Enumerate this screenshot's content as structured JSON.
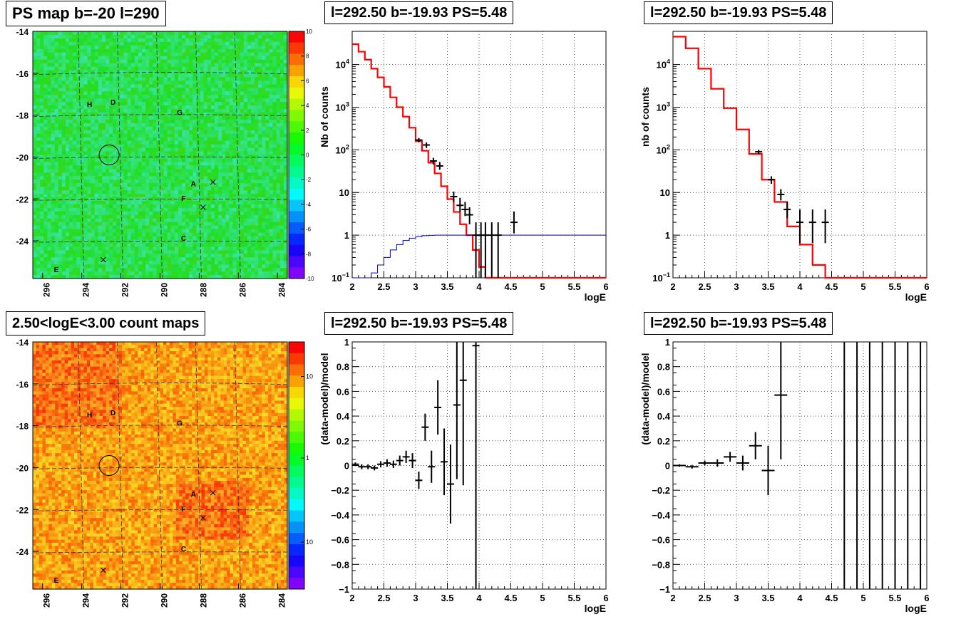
{
  "panels": {
    "ps_map": {
      "title": "PS map b=-20 l=290",
      "colorbar_ticks": [
        "10",
        "8",
        "6",
        "4",
        "2",
        "0",
        "-2",
        "-4",
        "-6",
        "-8",
        "-10"
      ],
      "y_ticks": [
        "-14",
        "-16",
        "-18",
        "-20",
        "-22",
        "-24"
      ],
      "x_ticks": [
        "296",
        "294",
        "292",
        "290",
        "288",
        "286",
        "284"
      ],
      "sources": [
        "H",
        "D",
        "G",
        "A",
        "F",
        "C",
        "E"
      ]
    },
    "count_map": {
      "title": "2.50<logE<3.00 count maps",
      "colorbar_ticks": [
        "10",
        "1",
        "10^-1"
      ],
      "y_ticks": [
        "-14",
        "-16",
        "-18",
        "-20",
        "-22",
        "-24"
      ],
      "x_ticks": [
        "296",
        "294",
        "292",
        "290",
        "288",
        "286",
        "284"
      ],
      "sources": [
        "H",
        "D",
        "G",
        "A",
        "F",
        "C",
        "E"
      ]
    },
    "spectrum_left": {
      "title": "l=292.50 b=-19.93 PS=5.48"
    },
    "spectrum_right": {
      "title": "l=292.50 b=-19.93 PS=5.48"
    },
    "residual_left": {
      "title": "l=292.50 b=-19.93 PS=5.48"
    },
    "residual_right": {
      "title": "l=292.50 b=-19.93 PS=5.48"
    }
  },
  "colors": {
    "model": "#ff0000",
    "blue_model": "#0000cc",
    "data": "#000000"
  },
  "chart_data": [
    {
      "type": "heatmap",
      "title": "PS map b=-20 l=290",
      "xlabel": "",
      "ylabel": "",
      "xlim": [
        296.5,
        283.5
      ],
      "ylim": [
        -25.8,
        -14
      ],
      "zlim": [
        -10,
        10
      ],
      "circle": {
        "x": 292.6,
        "y": -19.9
      },
      "markers": [
        {
          "x": 287.3,
          "y": -21.2
        },
        {
          "x": 287.8,
          "y": -22.4
        },
        {
          "x": 292.9,
          "y": -24.9
        }
      ],
      "labels": [
        {
          "text": "H",
          "x": 293.6,
          "y": -17.6
        },
        {
          "text": "D",
          "x": 292.4,
          "y": -17.5
        },
        {
          "text": "G",
          "x": 289.0,
          "y": -18.0
        },
        {
          "text": "A",
          "x": 288.3,
          "y": -21.4
        },
        {
          "text": "F",
          "x": 288.8,
          "y": -22.1
        },
        {
          "text": "C",
          "x": 288.8,
          "y": -24.0
        },
        {
          "text": "E",
          "x": 295.3,
          "y": -25.5
        }
      ]
    },
    {
      "type": "line",
      "title": "l=292.50 b=-19.93 PS=5.48",
      "xlabel": "logE",
      "ylabel": "Nb of counts",
      "xlim": [
        2,
        6
      ],
      "ylim": [
        0.1,
        60000
      ],
      "log_y": true,
      "grid": true,
      "series": [
        {
          "style": "step",
          "edges": [
            2.0,
            2.1,
            2.2,
            2.3,
            2.4,
            2.5,
            2.6,
            2.7,
            2.8,
            2.9,
            3.0,
            3.1,
            3.2,
            3.3,
            3.4,
            3.5,
            3.6,
            3.7,
            3.8,
            3.9,
            4.0,
            4.1,
            4.2,
            6.0
          ],
          "values": [
            30000,
            20000,
            13000,
            8000,
            5000,
            3000,
            1700,
            1000,
            600,
            330,
            160,
            95,
            50,
            28,
            14,
            7,
            3.5,
            1.8,
            1.0,
            0.45,
            0.18,
            0.1,
            0.1
          ]
        },
        {
          "style": "step",
          "edges": [
            2.0,
            2.3,
            2.4,
            2.5,
            2.6,
            2.7,
            2.8,
            2.9,
            3.0,
            3.1,
            3.2,
            3.3,
            3.4,
            3.5,
            6.0
          ],
          "values": [
            0.1,
            0.13,
            0.2,
            0.3,
            0.45,
            0.6,
            0.75,
            0.85,
            0.92,
            0.97,
            0.99,
            1.0,
            1.0,
            1.0
          ]
        },
        {
          "style": "points",
          "x": [
            3.05,
            3.17,
            3.28,
            3.38,
            3.6,
            3.7,
            3.78,
            3.85,
            3.95,
            4.03,
            4.1,
            4.2,
            4.3,
            4.55
          ],
          "y": [
            170,
            130,
            55,
            42,
            8,
            5,
            4,
            3,
            1,
            1,
            1,
            1,
            1,
            2
          ],
          "ylo": [
            150,
            110,
            45,
            34,
            6,
            3.5,
            2.8,
            1.8,
            0.1,
            0.1,
            0.1,
            0.1,
            0.1,
            1.1
          ],
          "yhi": [
            190,
            150,
            65,
            52,
            10.5,
            7.5,
            6,
            4.5,
            2,
            2,
            2,
            2,
            2,
            3.6
          ]
        }
      ]
    },
    {
      "type": "line",
      "title": "l=292.50 b=-19.93 PS=5.48",
      "xlabel": "logE",
      "ylabel": "nb of counts",
      "xlim": [
        2,
        6
      ],
      "ylim": [
        0.1,
        60000
      ],
      "log_y": true,
      "grid": true,
      "series": [
        {
          "style": "step",
          "edges": [
            2.0,
            2.2,
            2.4,
            2.6,
            2.8,
            3.0,
            3.2,
            3.4,
            3.6,
            3.8,
            4.0,
            4.2,
            4.4,
            6.0
          ],
          "values": [
            45000,
            24000,
            8000,
            2700,
            950,
            300,
            80,
            20,
            6,
            1.6,
            0.6,
            0.2,
            0.1
          ]
        },
        {
          "style": "points",
          "x": [
            3.35,
            3.55,
            3.7,
            3.8,
            4.0,
            4.2,
            4.4
          ],
          "y": [
            90,
            20,
            9,
            4,
            2,
            2,
            2
          ],
          "ylo": [
            80,
            16,
            6.5,
            2.5,
            0.65,
            0.65,
            0.65
          ],
          "yhi": [
            100,
            24,
            12,
            6,
            4,
            4,
            4
          ]
        }
      ]
    },
    {
      "type": "heatmap",
      "title": "2.50<logE<3.00 count maps",
      "xlabel": "",
      "ylabel": "",
      "xlim": [
        296.5,
        283.5
      ],
      "ylim": [
        -25.8,
        -14
      ],
      "circle": {
        "x": 292.6,
        "y": -19.9
      },
      "markers": [
        {
          "x": 287.3,
          "y": -21.2
        },
        {
          "x": 287.8,
          "y": -22.4
        },
        {
          "x": 292.9,
          "y": -24.9
        }
      ],
      "labels": [
        {
          "text": "H",
          "x": 293.6,
          "y": -17.6
        },
        {
          "text": "D",
          "x": 292.4,
          "y": -17.5
        },
        {
          "text": "G",
          "x": 289.0,
          "y": -18.0
        },
        {
          "text": "A",
          "x": 288.3,
          "y": -21.4
        },
        {
          "text": "F",
          "x": 288.8,
          "y": -22.1
        },
        {
          "text": "C",
          "x": 288.8,
          "y": -24.0
        },
        {
          "text": "E",
          "x": 295.3,
          "y": -25.5
        }
      ]
    },
    {
      "type": "scatter",
      "title": "l=292.50 b=-19.93 PS=5.48",
      "xlabel": "logE",
      "ylabel": "(data-model)/model",
      "xlim": [
        2,
        6
      ],
      "ylim": [
        -1,
        1
      ],
      "grid": true,
      "points": [
        {
          "x": 2.05,
          "y": 0.01,
          "ey": 0.015
        },
        {
          "x": 2.15,
          "y": -0.01,
          "ey": 0.02
        },
        {
          "x": 2.25,
          "y": -0.01,
          "ey": 0.02
        },
        {
          "x": 2.35,
          "y": -0.02,
          "ey": 0.02
        },
        {
          "x": 2.45,
          "y": 0.01,
          "ey": 0.025
        },
        {
          "x": 2.55,
          "y": 0.02,
          "ey": 0.03
        },
        {
          "x": 2.65,
          "y": 0.01,
          "ey": 0.03
        },
        {
          "x": 2.75,
          "y": 0.04,
          "ey": 0.04
        },
        {
          "x": 2.85,
          "y": 0.07,
          "ey": 0.05
        },
        {
          "x": 2.95,
          "y": 0.04,
          "ey": 0.06
        },
        {
          "x": 3.05,
          "y": -0.12,
          "ey": 0.07
        },
        {
          "x": 3.15,
          "y": 0.31,
          "ey": 0.11
        },
        {
          "x": 3.25,
          "y": -0.01,
          "ey": 0.13
        },
        {
          "x": 3.35,
          "y": 0.47,
          "ey": 0.22
        },
        {
          "x": 3.45,
          "y": 0.03,
          "ey": 0.27
        },
        {
          "x": 3.55,
          "y": -0.15,
          "ey": 0.32
        },
        {
          "x": 3.65,
          "y": 0.49,
          "ey": 0.6
        },
        {
          "x": 3.75,
          "y": 0.69,
          "ey": 0.85
        },
        {
          "x": 3.95,
          "y": 0.97,
          "ey": 2.0
        }
      ]
    },
    {
      "type": "scatter",
      "title": "l=292.50 b=-19.93 PS=5.48",
      "xlabel": "logE",
      "ylabel": "(data-model)/model",
      "xlim": [
        2,
        6
      ],
      "ylim": [
        -1,
        1
      ],
      "grid": true,
      "points": [
        {
          "x": 2.1,
          "y": 0.0,
          "ey": 0.01
        },
        {
          "x": 2.3,
          "y": -0.01,
          "ey": 0.015
        },
        {
          "x": 2.5,
          "y": 0.02,
          "ey": 0.02
        },
        {
          "x": 2.7,
          "y": 0.02,
          "ey": 0.03
        },
        {
          "x": 2.9,
          "y": 0.07,
          "ey": 0.04
        },
        {
          "x": 3.1,
          "y": 0.02,
          "ey": 0.06
        },
        {
          "x": 3.3,
          "y": 0.16,
          "ey": 0.11
        },
        {
          "x": 3.5,
          "y": -0.04,
          "ey": 0.2
        },
        {
          "x": 3.7,
          "y": 0.57,
          "ey": 0.52
        }
      ],
      "vertical_lines_x": [
        4.7,
        4.9,
        5.1,
        5.3,
        5.5,
        5.7,
        5.9
      ]
    }
  ]
}
